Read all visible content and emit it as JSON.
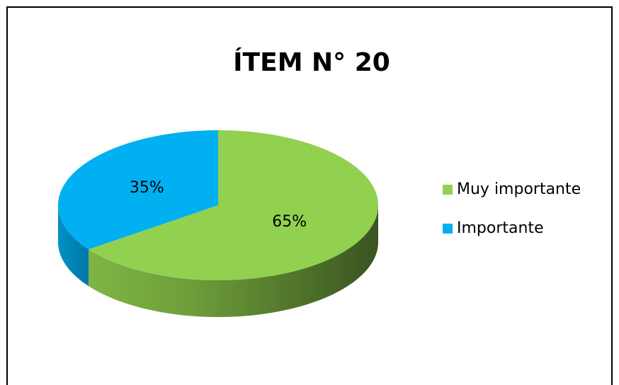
{
  "chart_data": {
    "type": "pie",
    "title": "ÍTEM N° 20",
    "categories": [
      "Muy importante",
      "Importante"
    ],
    "values": [
      65,
      35
    ],
    "value_labels": [
      "65%",
      "35%"
    ],
    "colors": [
      "#92d050",
      "#00b0f0"
    ],
    "legend": "right"
  }
}
